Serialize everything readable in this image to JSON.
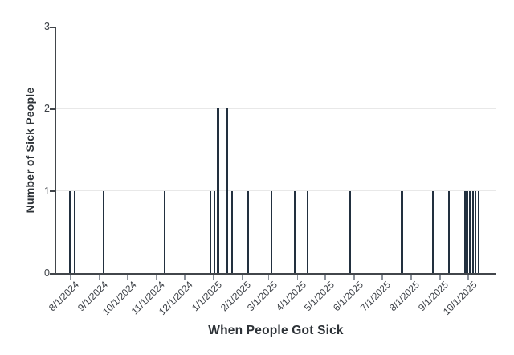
{
  "chart_data": {
    "type": "bar",
    "title": "",
    "xlabel": "When People Got Sick",
    "ylabel": "Number of Sick People",
    "grid": "horizontal",
    "legend": "none",
    "y_axis": {
      "tick_labels": [
        "0",
        "1",
        "2",
        "3"
      ],
      "lim": [
        0,
        3
      ]
    },
    "x_axis": {
      "tick_labels": [
        "8/1/2024",
        "9/1/2024",
        "10/1/2024",
        "11/1/2024",
        "12/1/2024",
        "1/1/2025",
        "2/1/2025",
        "3/1/2025",
        "4/1/2025",
        "5/1/2025",
        "6/1/2025",
        "7/1/2025",
        "8/1/2025",
        "9/1/2025",
        "10/1/2025"
      ],
      "approx_range": [
        "7/16/2024",
        "10/30/2025"
      ]
    },
    "bars": [
      {
        "date": "7/31/2024",
        "value": 1
      },
      {
        "date": "8/5/2024",
        "value": 1
      },
      {
        "date": "9/5/2024",
        "value": 1
      },
      {
        "date": "11/10/2024",
        "value": 1
      },
      {
        "date": "12/29/2024",
        "value": 1
      },
      {
        "date": "1/2/2025",
        "value": 1
      },
      {
        "date": "1/6/2025",
        "value": 2
      },
      {
        "date": "1/16/2025",
        "value": 2
      },
      {
        "date": "1/21/2025",
        "value": 1
      },
      {
        "date": "2/7/2025",
        "value": 1
      },
      {
        "date": "3/4/2025",
        "value": 1
      },
      {
        "date": "3/29/2025",
        "value": 1
      },
      {
        "date": "4/12/2025",
        "value": 1
      },
      {
        "date": "5/27/2025",
        "value": 1
      },
      {
        "date": "7/22/2025",
        "value": 1
      },
      {
        "date": "8/24/2025",
        "value": 1
      },
      {
        "date": "9/10/2025",
        "value": 1
      },
      {
        "date": "9/28/2025",
        "value": 1
      },
      {
        "date": "9/30/2025",
        "value": 1
      },
      {
        "date": "10/3/2025",
        "value": 1
      },
      {
        "date": "10/6/2025",
        "value": 1
      },
      {
        "date": "10/9/2025",
        "value": 1
      },
      {
        "date": "10/12/2025",
        "value": 1
      }
    ]
  },
  "colors": {
    "bar": "#22303f",
    "gridline": "#e8e8e8",
    "axis_line": "#42464b",
    "x_tick": "#8b919a",
    "tick_label": "#3b3f45",
    "axis_title": "#2d3237",
    "background": "#ffffff"
  }
}
